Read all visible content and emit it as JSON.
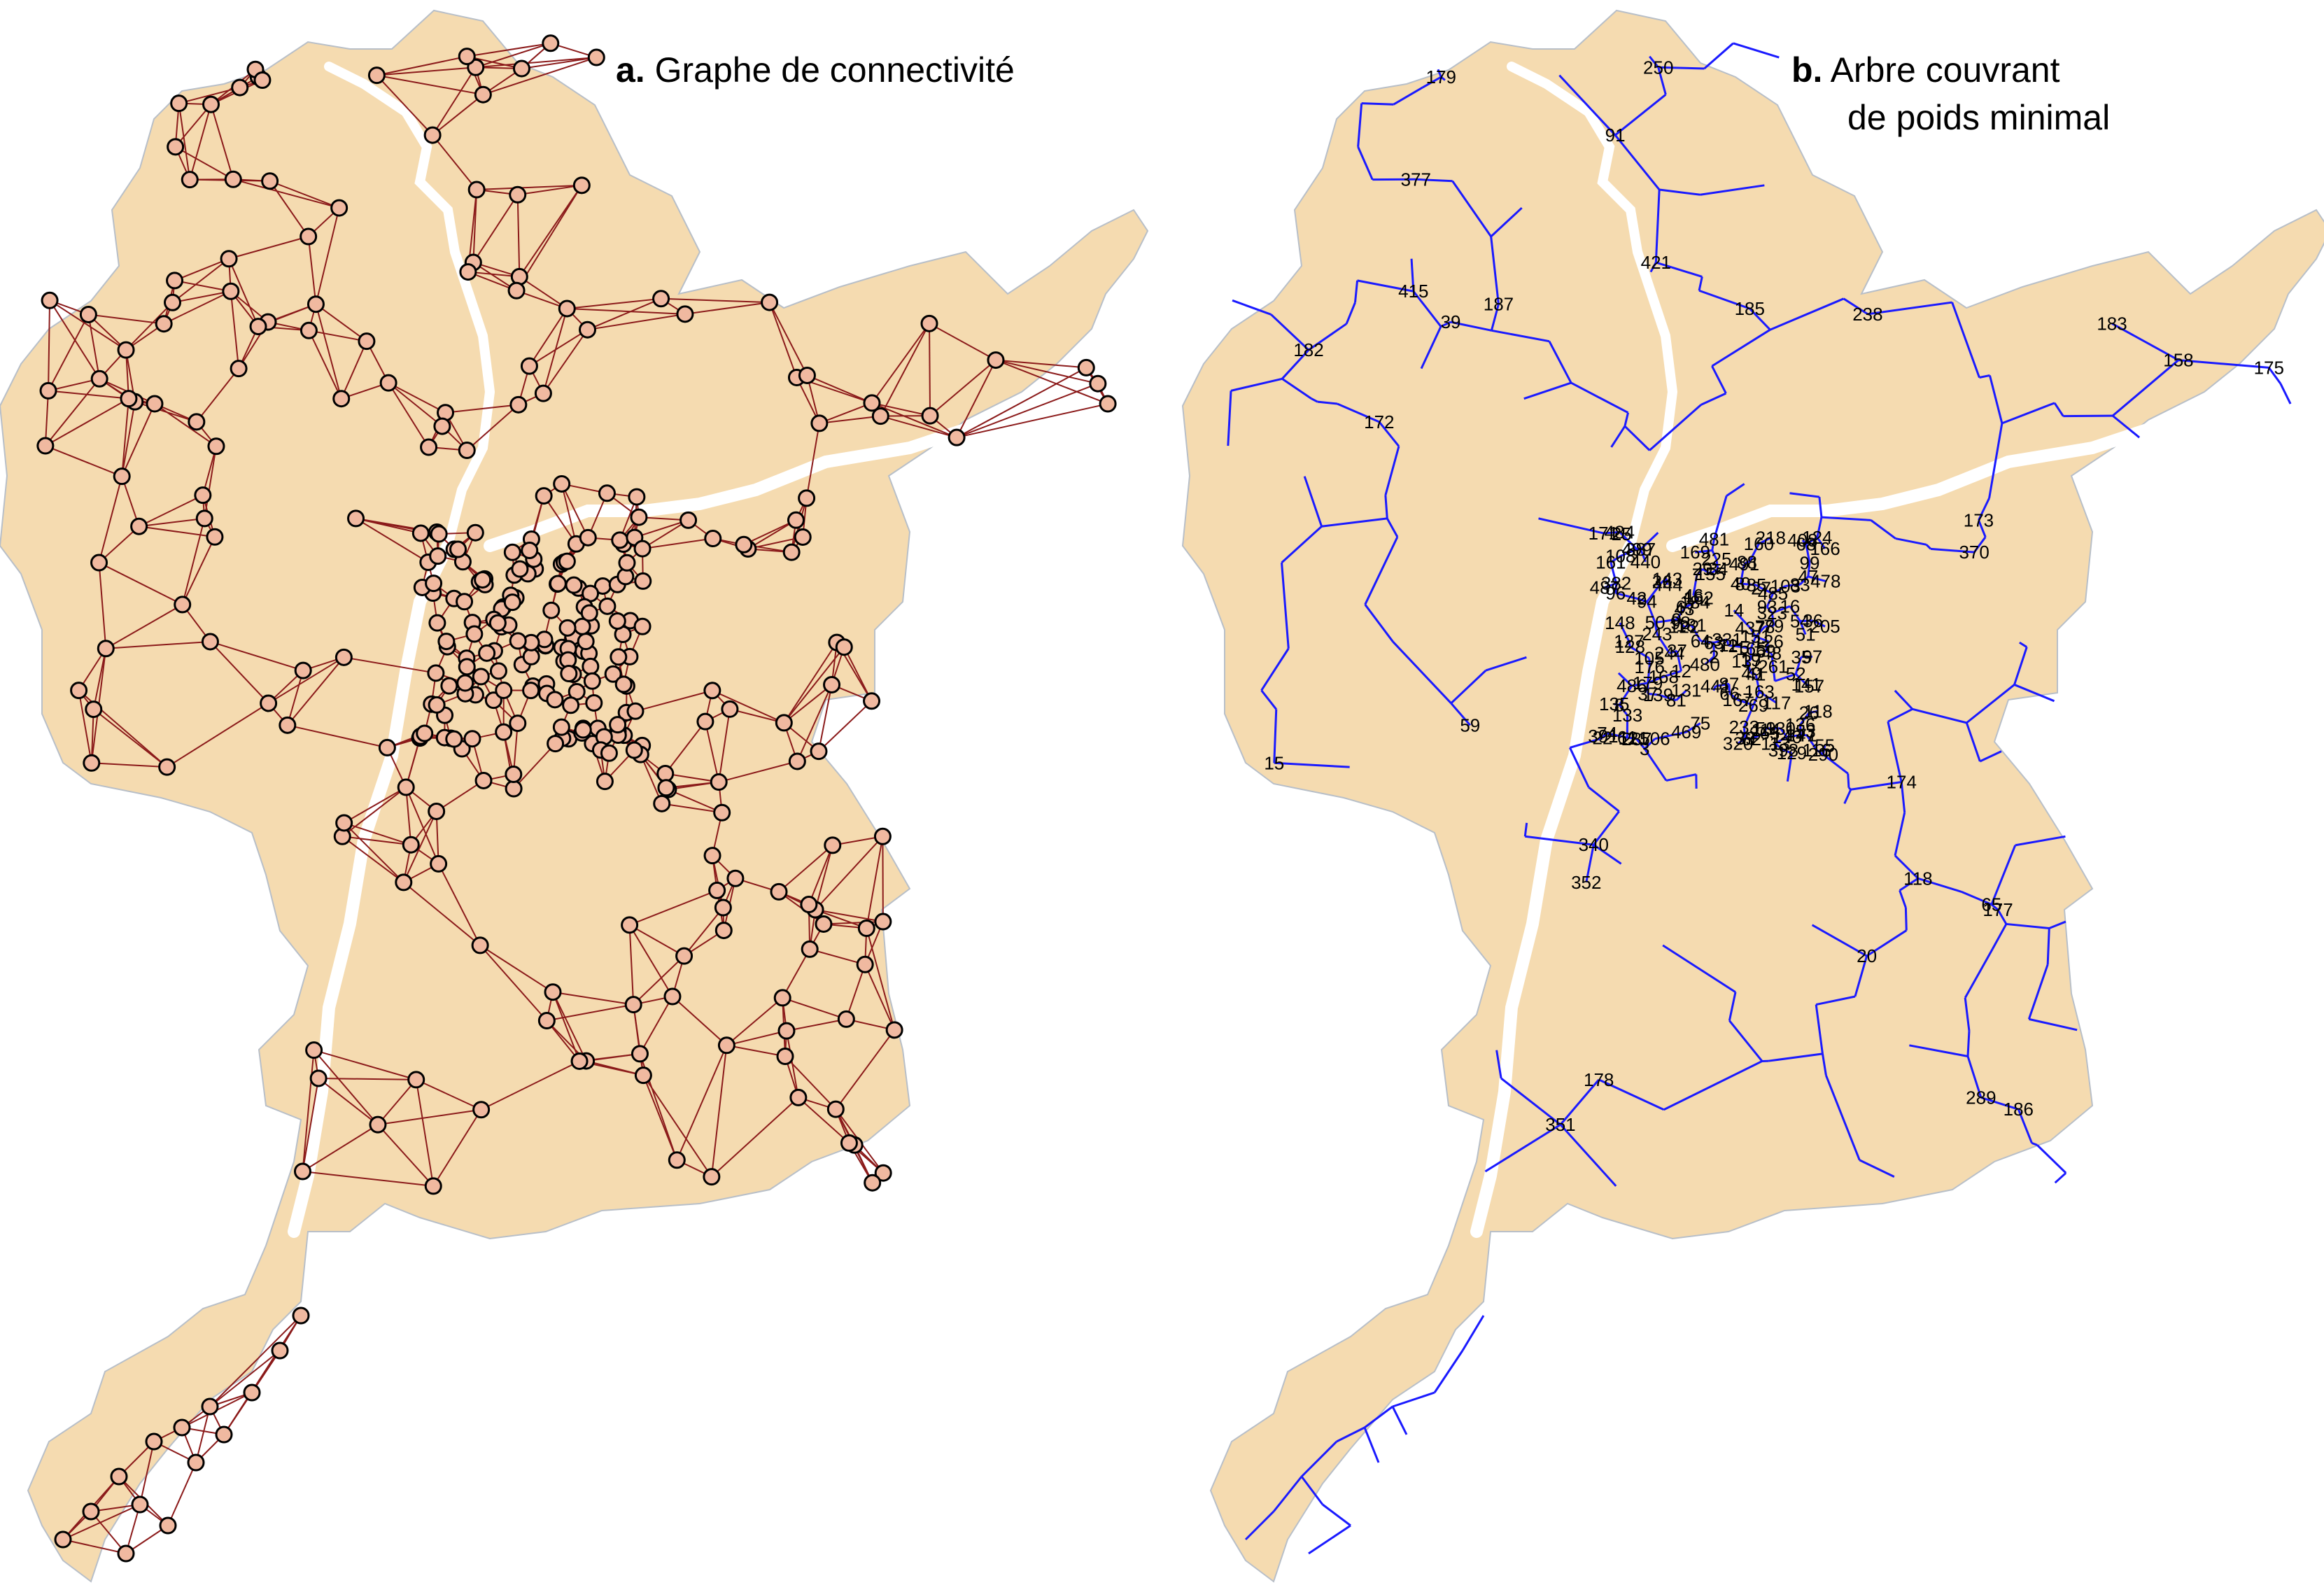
{
  "panel_a": {
    "letter": "a.",
    "title": "Graphe de connectivité"
  },
  "panel_b": {
    "letter": "b.",
    "title_line1": "Arbre couvrant",
    "title_line2": "de poids minimal"
  },
  "colors": {
    "territory_fill": "#f5dbb0",
    "commune_border": "#b8bfc8",
    "river": "#ffffff",
    "graph_edge": "#8b1a1a",
    "node_outline": "#000000",
    "node_fill": "#f0b9a0",
    "tree_edge": "#1a1aff",
    "label": "#000000"
  },
  "node_labels": [
    "22",
    "143",
    "69",
    "81",
    "48",
    "41",
    "103",
    "131",
    "160",
    "151",
    "26",
    "128",
    "157",
    "137",
    "71",
    "67",
    "16",
    "42",
    "162",
    "97",
    "59",
    "96",
    "72",
    "7",
    "68",
    "43",
    "62",
    "34",
    "46",
    "122",
    "37",
    "8",
    "51",
    "52",
    "5",
    "441",
    "36",
    "27",
    "14",
    "9",
    "130",
    "133",
    "148",
    "499",
    "478",
    "491",
    "480",
    "121",
    "153",
    "147",
    "485",
    "487",
    "484",
    "40",
    "126",
    "85",
    "83",
    "469",
    "127",
    "391",
    "39",
    "74",
    "3",
    "87",
    "36",
    "105",
    "135",
    "163",
    "481",
    "61",
    "486",
    "408",
    "136",
    "55",
    "79",
    "139",
    "54",
    "50",
    "35",
    "12",
    "93",
    "78",
    "94",
    "290",
    "233",
    "47",
    "88",
    "2",
    "113",
    "155",
    "29",
    "165",
    "11",
    "323",
    "218",
    "244",
    "37",
    "444",
    "437",
    "8",
    "140",
    "141",
    "124",
    "261",
    "263",
    "161",
    "108",
    "25",
    "320",
    "440",
    "179",
    "243",
    "205",
    "269",
    "181",
    "382",
    "398",
    "287",
    "225",
    "176",
    "387",
    "168",
    "331",
    "166",
    "184",
    "171",
    "169",
    "506",
    "117",
    "75",
    "118",
    "19",
    "98",
    "63",
    "66",
    "49",
    "114",
    "129",
    "64",
    "116",
    "91",
    "178",
    "177",
    "39",
    "118",
    "99",
    "158",
    "370",
    "421",
    "238",
    "340",
    "351",
    "250",
    "289",
    "415",
    "377",
    "352",
    "20",
    "65",
    "15",
    "59",
    "187",
    "174",
    "183",
    "173",
    "186",
    "182",
    "175",
    "179",
    "167",
    "172",
    "185"
  ]
}
